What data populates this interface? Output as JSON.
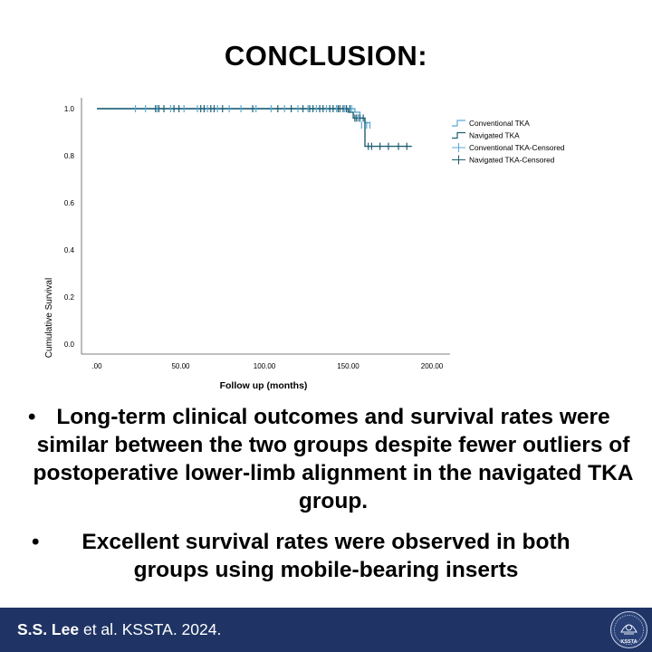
{
  "slide": {
    "title": "CONCLUSION:",
    "bullets": [
      "Long-term clinical outcomes and survival rates were similar between the two groups despite fewer outliers of postoperative lower-limb alignment in the navigated TKA group.",
      "Excellent survival rates were observed in both groups using mobile-bearing inserts"
    ],
    "bullet_symbol": "•"
  },
  "footer": {
    "authors": "S.S. Lee",
    "rest": " et al. KSSTA. 2024.",
    "logo_text": "KSSTA"
  },
  "colors": {
    "footer_bg": "#1f3464",
    "conventional": "#5aa9d6",
    "navigated": "#1f5f72"
  },
  "chart_data": {
    "type": "line",
    "subtype": "kaplan-meier",
    "xlabel": "Follow up (months)",
    "ylabel": "Cumulative Survival",
    "xlim": [
      0,
      200
    ],
    "ylim": [
      0,
      1.0
    ],
    "xticks": [
      0,
      50,
      100,
      150,
      200
    ],
    "xtick_labels": [
      ".00",
      "50.00",
      "100.00",
      "150.00",
      "200.00"
    ],
    "yticks": [
      0,
      0.2,
      0.4,
      0.6,
      0.8,
      1.0
    ],
    "ytick_labels": [
      "0.0",
      "0.2",
      "0.4",
      "0.6",
      "0.8",
      "1.0"
    ],
    "legend": [
      "Conventional TKA",
      "Navigated TKA",
      "Conventional TKA-Censored",
      "Navigated TKA-Censored"
    ],
    "legend_position": "top-right",
    "series": [
      {
        "name": "Conventional TKA",
        "steps": [
          [
            0,
            1.0
          ],
          [
            154,
            1.0
          ],
          [
            154,
            0.985
          ],
          [
            157,
            0.985
          ],
          [
            157,
            0.96
          ],
          [
            160,
            0.96
          ],
          [
            160,
            0.94
          ],
          [
            163,
            0.94
          ]
        ],
        "censored": [
          [
            23,
            1.0
          ],
          [
            29,
            1.0
          ],
          [
            36,
            1.0
          ],
          [
            44,
            1.0
          ],
          [
            52,
            1.0
          ],
          [
            60,
            1.0
          ],
          [
            66,
            1.0
          ],
          [
            72,
            1.0
          ],
          [
            79,
            1.0
          ],
          [
            86,
            1.0
          ],
          [
            95,
            1.0
          ],
          [
            104,
            1.0
          ],
          [
            112,
            1.0
          ],
          [
            120,
            1.0
          ],
          [
            126,
            1.0
          ],
          [
            131,
            1.0
          ],
          [
            137,
            1.0
          ],
          [
            143,
            1.0
          ],
          [
            148,
            1.0
          ],
          [
            152,
            1.0
          ],
          [
            156,
            0.96
          ],
          [
            158,
            0.93
          ],
          [
            161,
            0.93
          ],
          [
            163,
            0.93
          ]
        ]
      },
      {
        "name": "Navigated TKA",
        "steps": [
          [
            0,
            1.0
          ],
          [
            150,
            1.0
          ],
          [
            150,
            0.985
          ],
          [
            153,
            0.985
          ],
          [
            153,
            0.96
          ],
          [
            160,
            0.96
          ],
          [
            160,
            0.84
          ],
          [
            188,
            0.84
          ]
        ],
        "censored": [
          [
            35,
            1.0
          ],
          [
            37,
            1.0
          ],
          [
            40,
            1.0
          ],
          [
            46,
            1.0
          ],
          [
            49,
            1.0
          ],
          [
            62,
            1.0
          ],
          [
            64,
            1.0
          ],
          [
            68,
            1.0
          ],
          [
            70,
            1.0
          ],
          [
            75,
            1.0
          ],
          [
            93,
            1.0
          ],
          [
            108,
            1.0
          ],
          [
            116,
            1.0
          ],
          [
            123,
            1.0
          ],
          [
            127,
            1.0
          ],
          [
            129,
            1.0
          ],
          [
            133,
            1.0
          ],
          [
            135,
            1.0
          ],
          [
            139,
            1.0
          ],
          [
            141,
            1.0
          ],
          [
            144,
            1.0
          ],
          [
            145,
            1.0
          ],
          [
            147,
            1.0
          ],
          [
            149,
            1.0
          ],
          [
            151,
            1.0
          ],
          [
            154,
            0.96
          ],
          [
            155,
            0.96
          ],
          [
            157,
            0.96
          ],
          [
            159,
            0.96
          ],
          [
            162,
            0.84
          ],
          [
            164,
            0.84
          ],
          [
            169,
            0.84
          ],
          [
            174,
            0.84
          ],
          [
            180,
            0.84
          ],
          [
            185,
            0.84
          ]
        ]
      }
    ]
  }
}
